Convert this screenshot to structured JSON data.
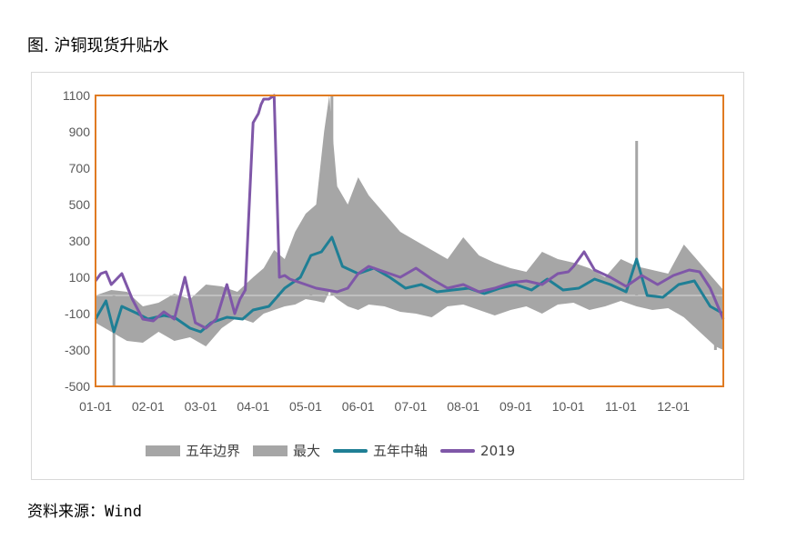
{
  "figure": {
    "title": "图. 沪铜现货升贴水",
    "source": "资料来源：Wind"
  },
  "chart_data": {
    "type": "area",
    "title": "",
    "xlabel": "",
    "ylabel": "",
    "ylim": [
      -500,
      1100
    ],
    "yticks": [
      -500,
      -300,
      -100,
      100,
      300,
      500,
      700,
      900,
      1100
    ],
    "x_categories": [
      "01-01",
      "02-01",
      "03-01",
      "04-01",
      "05-01",
      "06-01",
      "07-01",
      "08-01",
      "09-01",
      "10-01",
      "11-01",
      "12-01"
    ],
    "x_range_months": [
      0,
      11.95
    ],
    "colors": {
      "band": "#a6a6a6",
      "median": "#1f7f95",
      "y2019": "#7f57a8",
      "frame": "#e07b22"
    },
    "legend": [
      "五年边界",
      "最大",
      "五年中轴",
      "2019"
    ],
    "series": [
      {
        "name": "五年边界",
        "kind": "band",
        "x": [
          0,
          0.3,
          0.6,
          0.9,
          1.2,
          1.5,
          1.8,
          2.1,
          2.4,
          2.7,
          3.0,
          3.2,
          3.4,
          3.6,
          3.8,
          4.0,
          4.2,
          4.35,
          4.45,
          4.6,
          4.8,
          5.0,
          5.2,
          5.5,
          5.8,
          6.1,
          6.4,
          6.7,
          7.0,
          7.3,
          7.6,
          7.9,
          8.2,
          8.5,
          8.8,
          9.1,
          9.4,
          9.7,
          10.0,
          10.3,
          10.6,
          10.9,
          11.2,
          11.5,
          11.8,
          11.95
        ],
        "upper": [
          0,
          30,
          20,
          -60,
          -40,
          10,
          -20,
          60,
          50,
          20,
          100,
          150,
          250,
          200,
          350,
          450,
          500,
          900,
          1100,
          600,
          500,
          650,
          550,
          450,
          350,
          300,
          250,
          200,
          320,
          220,
          180,
          150,
          130,
          240,
          200,
          180,
          150,
          100,
          200,
          160,
          140,
          120,
          280,
          180,
          80,
          30
        ],
        "lower": [
          -150,
          -200,
          -250,
          -260,
          -200,
          -250,
          -230,
          -280,
          -180,
          -120,
          -150,
          -100,
          -80,
          -60,
          -50,
          -20,
          -30,
          -40,
          20,
          -20,
          -60,
          -80,
          -50,
          -60,
          -90,
          -100,
          -120,
          -60,
          -50,
          -80,
          -110,
          -80,
          -60,
          -100,
          -50,
          -40,
          -80,
          -60,
          -30,
          -60,
          -80,
          -70,
          -120,
          -200,
          -280,
          -300
        ]
      },
      {
        "name": "最大",
        "kind": "spikes",
        "x": [
          0.35,
          4.1,
          4.4,
          4.5,
          10.3,
          11.8
        ],
        "y": [
          -500,
          250,
          600,
          1100,
          850,
          -300
        ]
      },
      {
        "name": "五年中轴",
        "kind": "line",
        "x": [
          0,
          0.2,
          0.35,
          0.5,
          0.8,
          1.0,
          1.3,
          1.5,
          1.8,
          2.0,
          2.2,
          2.5,
          2.8,
          3.0,
          3.3,
          3.6,
          3.9,
          4.1,
          4.3,
          4.5,
          4.7,
          5.0,
          5.3,
          5.6,
          5.9,
          6.2,
          6.5,
          6.8,
          7.1,
          7.4,
          7.7,
          8.0,
          8.3,
          8.6,
          8.9,
          9.2,
          9.5,
          9.8,
          10.1,
          10.3,
          10.5,
          10.8,
          11.1,
          11.4,
          11.7,
          11.95
        ],
        "y": [
          -130,
          -30,
          -200,
          -60,
          -100,
          -130,
          -110,
          -120,
          -180,
          -200,
          -150,
          -120,
          -130,
          -80,
          -60,
          40,
          100,
          220,
          240,
          320,
          160,
          120,
          150,
          100,
          40,
          60,
          20,
          30,
          40,
          10,
          40,
          60,
          30,
          90,
          30,
          40,
          90,
          60,
          20,
          200,
          0,
          -10,
          60,
          80,
          -60,
          -100
        ]
      },
      {
        "name": "2019",
        "kind": "line",
        "x": [
          0,
          0.1,
          0.2,
          0.3,
          0.5,
          0.7,
          0.9,
          1.1,
          1.3,
          1.5,
          1.7,
          1.9,
          2.1,
          2.3,
          2.5,
          2.65,
          2.75,
          2.85,
          3.0,
          3.1,
          3.15,
          3.2,
          3.3,
          3.4,
          3.5,
          3.6,
          3.7,
          3.8,
          4.0,
          4.2,
          4.4,
          4.6,
          4.8,
          5.0,
          5.2,
          5.5,
          5.8,
          6.1,
          6.4,
          6.7,
          7.0,
          7.3,
          7.6,
          7.9,
          8.2,
          8.5,
          8.8,
          9.0,
          9.1,
          9.3,
          9.5,
          9.8,
          10.1,
          10.4,
          10.7,
          11.0,
          11.3,
          11.5,
          11.7,
          11.95
        ],
        "y": [
          80,
          120,
          130,
          60,
          120,
          -20,
          -130,
          -140,
          -90,
          -130,
          100,
          -150,
          -180,
          -130,
          60,
          -100,
          -20,
          30,
          950,
          1000,
          1050,
          1080,
          1080,
          1100,
          100,
          110,
          90,
          80,
          60,
          40,
          30,
          20,
          40,
          120,
          160,
          130,
          100,
          150,
          90,
          40,
          60,
          20,
          40,
          70,
          80,
          60,
          120,
          130,
          160,
          240,
          140,
          100,
          50,
          110,
          60,
          110,
          140,
          130,
          40,
          -130
        ]
      }
    ]
  }
}
